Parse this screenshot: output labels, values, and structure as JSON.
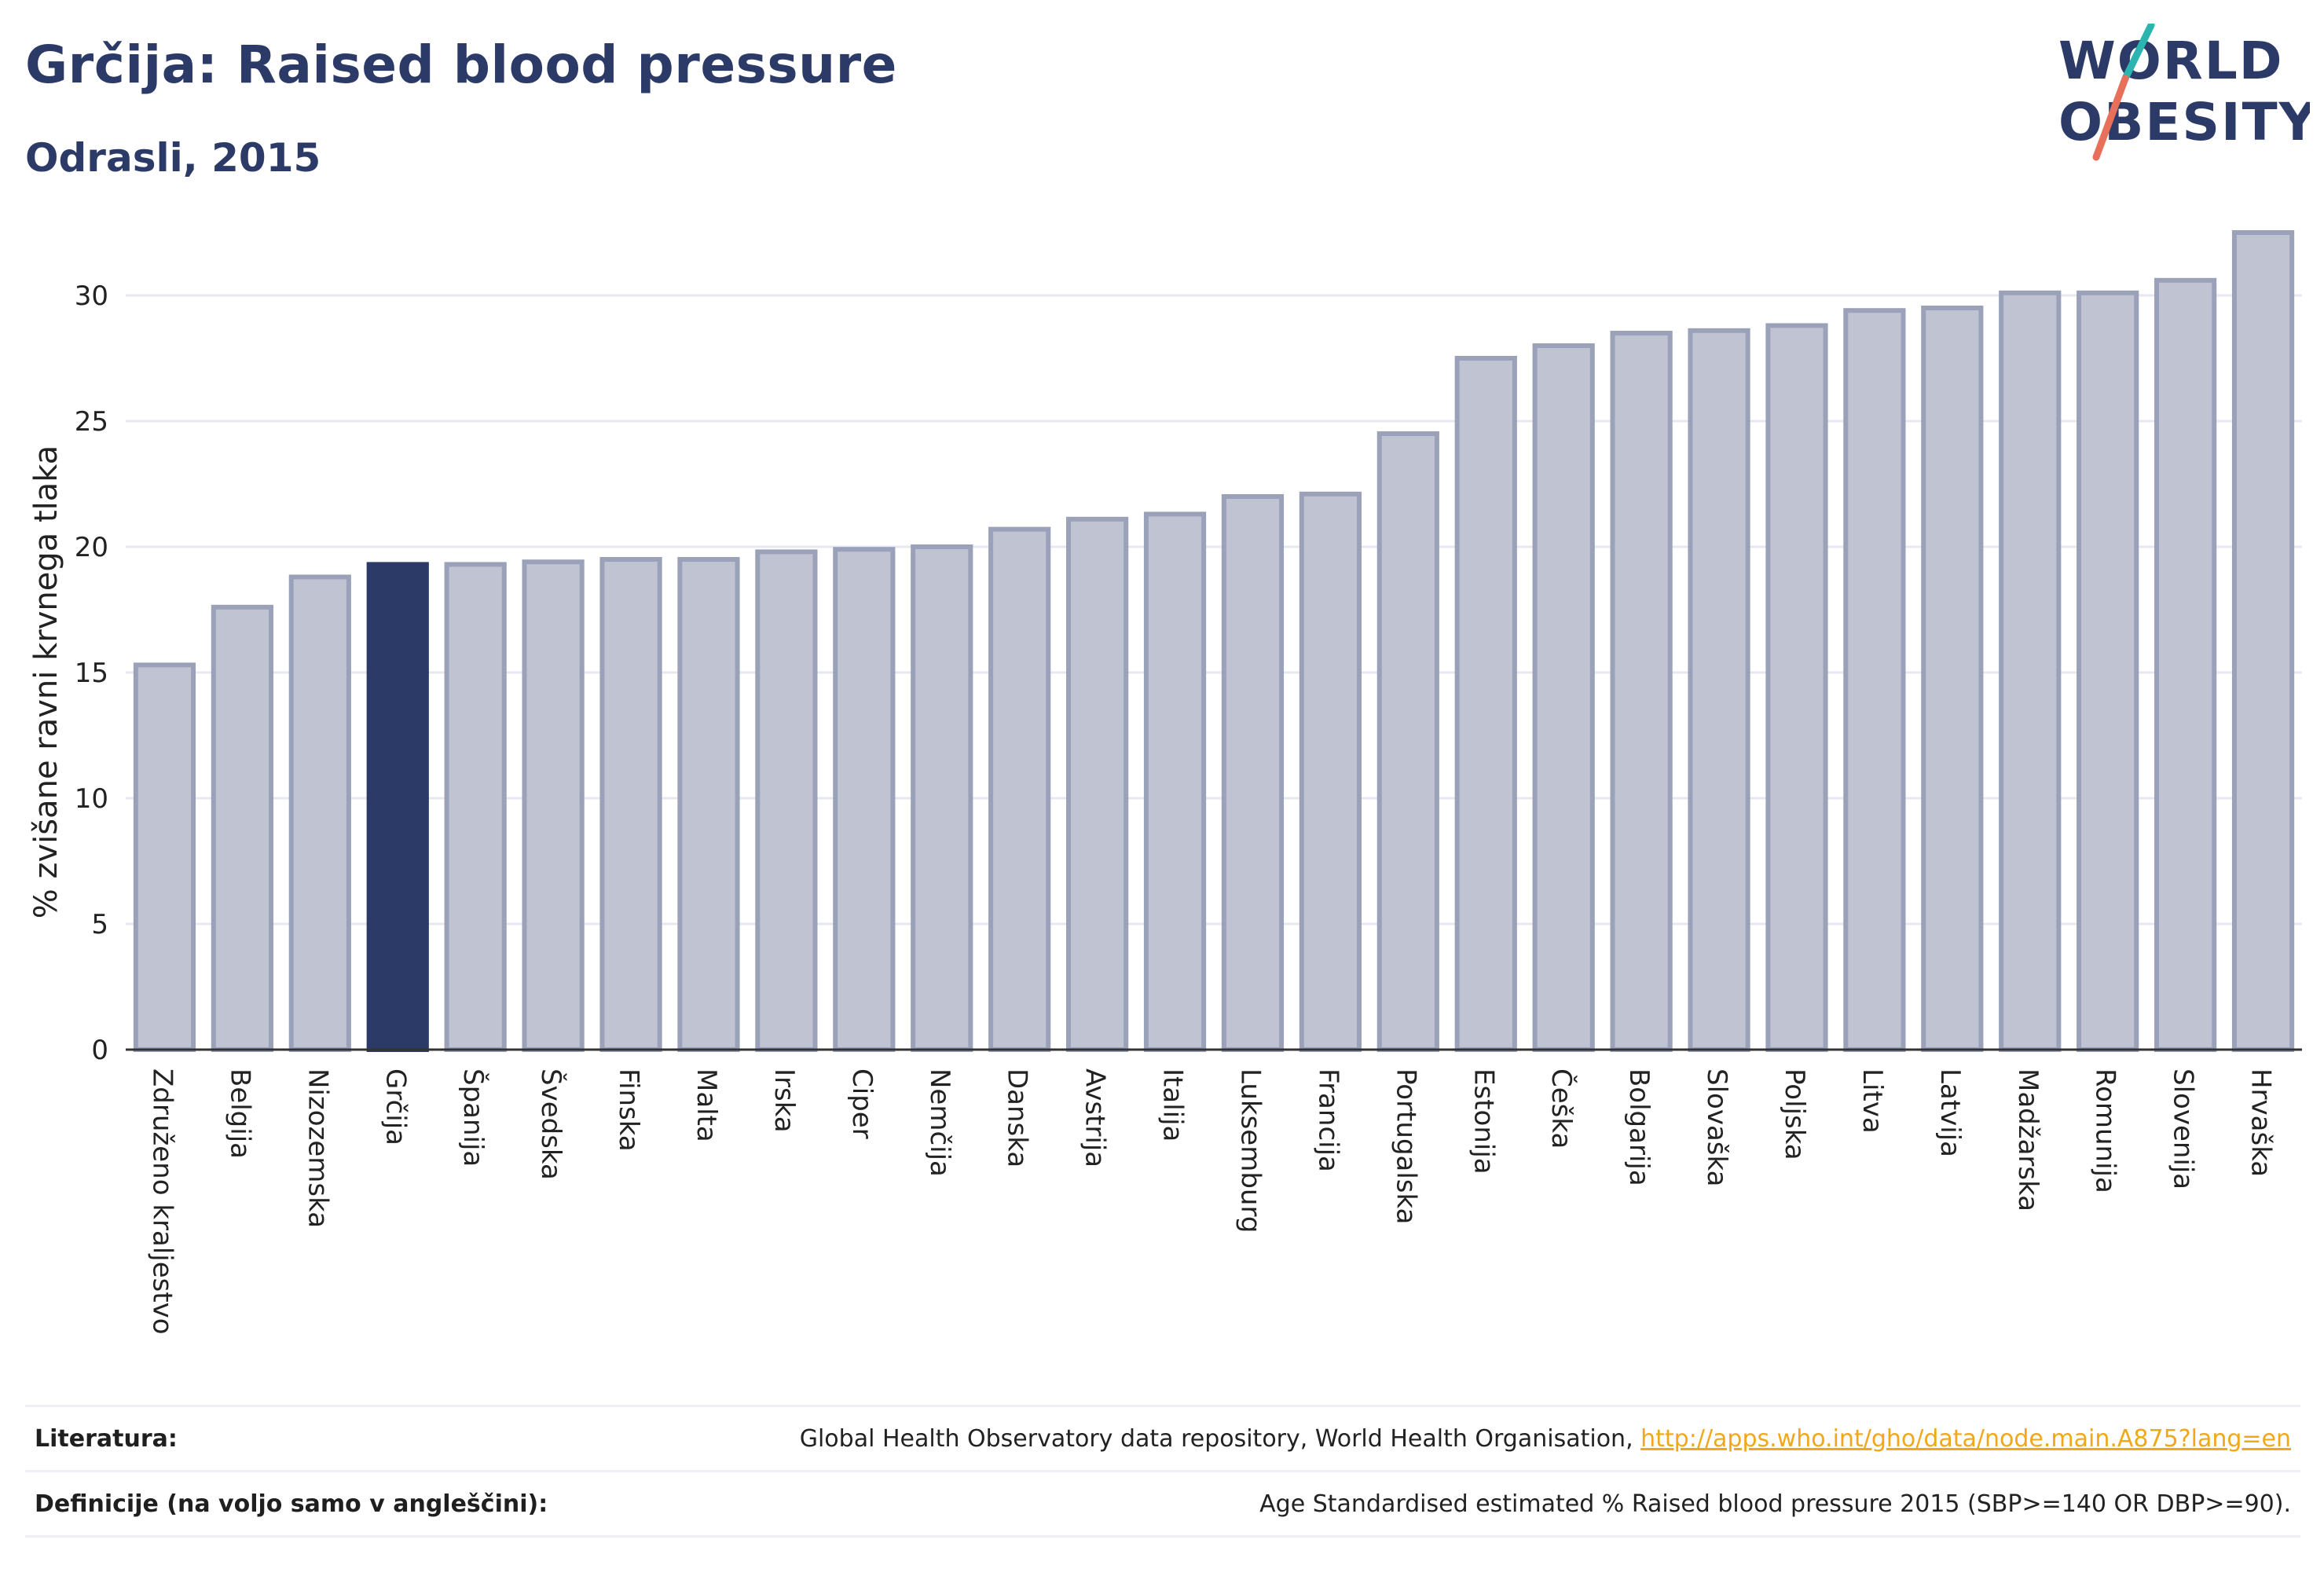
{
  "header": {
    "title": "Grčija: Raised blood pressure",
    "subtitle": "Odrasli, 2015"
  },
  "logo": {
    "line1": "WORLD",
    "line2": "OBESITY",
    "colors": {
      "text": "#2c3a67",
      "slash_top": "#2bb4b0",
      "slash_bottom": "#e8705a"
    }
  },
  "chart_data": {
    "type": "bar",
    "ylabel": "% zvišane ravni krvnega tlaka",
    "xlabel": "",
    "ylim": [
      0,
      33
    ],
    "yticks": [
      0,
      5,
      10,
      15,
      20,
      25,
      30
    ],
    "grid": true,
    "highlight": "Grčija",
    "colors": {
      "bar": "#c0c4d2",
      "bar_stroke": "#9aa1b8",
      "highlight": "#2c3a67"
    },
    "categories": [
      "Združeno kraljestvo",
      "Belgija",
      "Nizozemska",
      "Grčija",
      "Španija",
      "Švedska",
      "Finska",
      "Malta",
      "Irska",
      "Ciper",
      "Nemčija",
      "Danska",
      "Avstrija",
      "Italija",
      "Luksemburg",
      "Francija",
      "Portugalska",
      "Estonija",
      "Češka",
      "Bolgarija",
      "Slovaška",
      "Poljska",
      "Litva",
      "Latvija",
      "Madžarska",
      "Romunija",
      "Slovenija",
      "Hrvaška"
    ],
    "values": [
      15.3,
      17.6,
      18.8,
      19.3,
      19.3,
      19.4,
      19.5,
      19.5,
      19.8,
      19.9,
      20.0,
      20.7,
      21.1,
      21.3,
      22.0,
      22.1,
      24.5,
      27.5,
      28.0,
      28.5,
      28.6,
      28.8,
      29.4,
      29.5,
      30.1,
      30.1,
      30.6,
      32.5
    ]
  },
  "footer": {
    "sources_label": "Literatura:",
    "sources_text": "Global Health Observatory data repository, World Health Organisation, ",
    "sources_link": "http://apps.who.int/gho/data/node.main.A875?lang=en",
    "definitions_label": "Definicije (na voljo samo v angleščini):",
    "definitions_text": "Age Standardised estimated % Raised blood pressure 2015 (SBP>=140 OR DBP>=90)."
  }
}
